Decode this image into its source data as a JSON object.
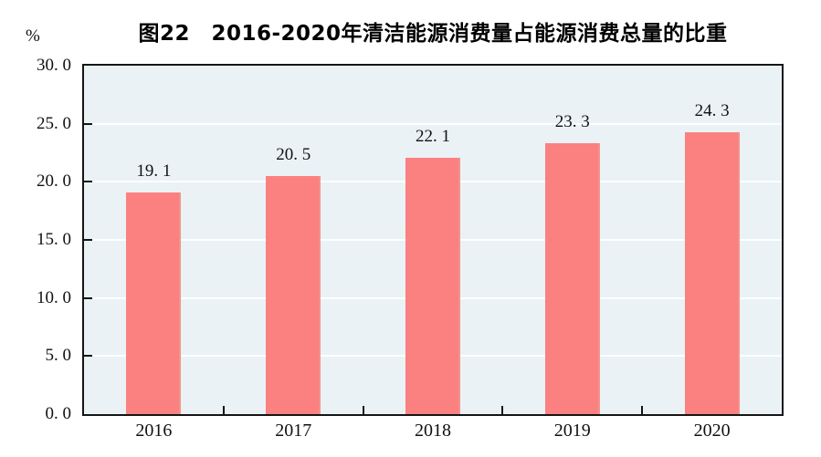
{
  "header": {
    "title": "图22　2016-2020年清洁能源消费量占能源消费总量的比重",
    "unit_label": "%"
  },
  "colors": {
    "page_background": "#FFFFFF",
    "plot_background": "#EAF2F6",
    "bar_fill": "#FB8080",
    "bar_edge": "#F2938A",
    "gridline": "#FDFEFE",
    "axis": "#151515",
    "text": "#111111"
  },
  "chart_data": {
    "type": "bar",
    "title": "图22　2016-2020年清洁能源消费量占能源消费总量的比重",
    "categories": [
      "2016",
      "2017",
      "2018",
      "2019",
      "2020"
    ],
    "values": [
      19.1,
      20.5,
      22.1,
      23.3,
      24.3
    ],
    "value_labels": [
      "19. 1",
      "20. 5",
      "22. 1",
      "23. 3",
      "24. 3"
    ],
    "xlabel": "",
    "ylabel": "%",
    "ylim": [
      0,
      30
    ],
    "yticks": [
      0,
      5,
      10,
      15,
      20,
      25,
      30
    ],
    "ytick_labels": [
      "0. 0",
      "5. 0",
      "10. 0",
      "15. 0",
      "20. 0",
      "25. 0",
      "30. 0"
    ],
    "grid": "horizontal",
    "legend_position": "none"
  }
}
